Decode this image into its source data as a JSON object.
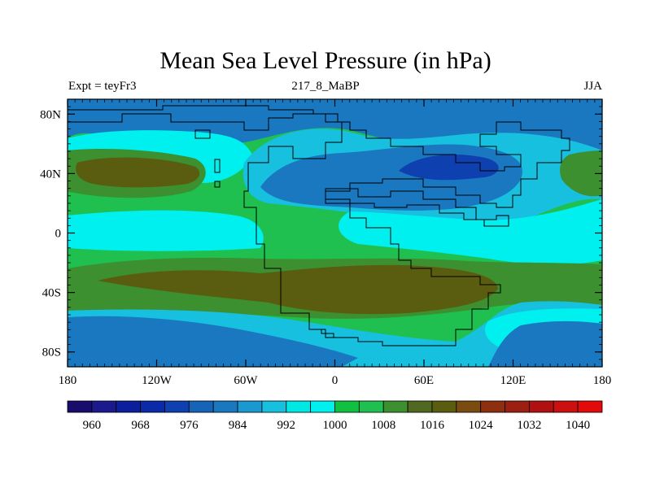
{
  "chart_data": {
    "type": "heatmap",
    "title": "Mean Sea Level Pressure (in hPa)",
    "left_label": "Expt = teyFr3",
    "center_label": "217_8_MaBP",
    "right_label": "JJA",
    "x_ticks": [
      "180",
      "120W",
      "60W",
      "0",
      "60E",
      "120E",
      "180"
    ],
    "x_tick_values": [
      -180,
      -120,
      -60,
      0,
      60,
      120,
      180
    ],
    "y_ticks": [
      "80N",
      "40N",
      "0",
      "40S",
      "80S"
    ],
    "y_tick_values": [
      80,
      40,
      0,
      -40,
      -80
    ],
    "xlim": [
      -180,
      180
    ],
    "ylim": [
      -90,
      90
    ],
    "colorbar": {
      "levels": [
        960,
        964,
        968,
        972,
        976,
        980,
        984,
        988,
        992,
        996,
        1000,
        1004,
        1008,
        1012,
        1016,
        1020,
        1024,
        1028,
        1032,
        1036,
        1040
      ],
      "labels": [
        "960",
        "968",
        "976",
        "984",
        "992",
        "1000",
        "1008",
        "1016",
        "1024",
        "1032",
        "1040"
      ],
      "colors": [
        "#180c6c",
        "#1a1a8c",
        "#0b1e9c",
        "#0a2aa8",
        "#0f40b0",
        "#1664b8",
        "#1a78c0",
        "#1a98d0",
        "#18c0e0",
        "#00e8e4",
        "#00f0f0",
        "#10c040",
        "#20c050",
        "#3c9030",
        "#506820",
        "#5a5c10",
        "#7a4c10",
        "#8e3010",
        "#9c2010",
        "#b01010",
        "#cc1010",
        "#e40a0a"
      ]
    }
  }
}
